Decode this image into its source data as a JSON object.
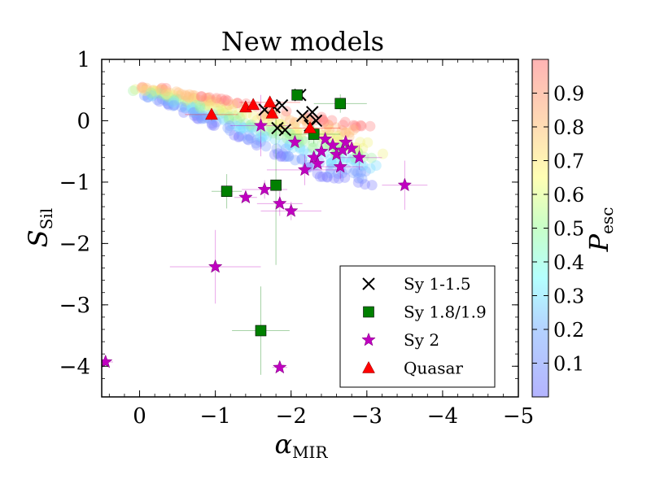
{
  "chart_data": {
    "type": "scatter",
    "title": "New models",
    "xlabel": {
      "main": "α",
      "sub": "MIR"
    },
    "ylabel": {
      "main": "S",
      "sub": "Sil"
    },
    "xlim": [
      0.5,
      -5
    ],
    "ylim": [
      -4.5,
      1
    ],
    "x_ticks": [
      0,
      -1,
      -2,
      -3,
      -4,
      -5
    ],
    "x_tick_labels": [
      "0",
      "−1",
      "−2",
      "−3",
      "−4",
      "−5"
    ],
    "y_ticks": [
      1,
      0,
      -1,
      -2,
      -3,
      -4
    ],
    "y_tick_labels": [
      "1",
      "0",
      "−1",
      "−2",
      "−3",
      "−4"
    ],
    "colorbar": {
      "label": "P",
      "label_sub": "esc",
      "range": [
        0,
        1
      ],
      "ticks": [
        0.1,
        0.2,
        0.3,
        0.4,
        0.5,
        0.6,
        0.7,
        0.8,
        0.9
      ],
      "tick_labels": [
        "0.1",
        "0.2",
        "0.3",
        "0.4",
        "0.5",
        "0.6",
        "0.7",
        "0.8",
        "0.9"
      ]
    },
    "legend_position": "lower-right",
    "series": [
      {
        "name": "Sy 1-1.5",
        "marker": "x",
        "color": "#000000",
        "points": [
          [
            -1.65,
            0.18
          ],
          [
            -1.78,
            0.22
          ],
          [
            -1.88,
            0.25
          ],
          [
            -2.12,
            0.42
          ],
          [
            -2.15,
            0.08
          ],
          [
            -2.28,
            0.14
          ],
          [
            -2.33,
            0.0
          ],
          [
            -1.82,
            -0.12
          ],
          [
            -1.92,
            -0.15
          ],
          [
            -2.25,
            -0.08
          ]
        ]
      },
      {
        "name": "Sy 1.8/1.9",
        "marker": "square",
        "color": "#008000",
        "points": [
          [
            -2.08,
            0.42
          ],
          [
            -2.65,
            0.28
          ],
          [
            -2.3,
            -0.22
          ],
          [
            -1.15,
            -1.15
          ],
          [
            -1.8,
            -1.05
          ],
          [
            -1.6,
            -3.42
          ]
        ]
      },
      {
        "name": "Sy 2",
        "marker": "star",
        "color": "#c000c0",
        "points": [
          [
            -1.6,
            -0.08
          ],
          [
            -2.05,
            -0.35
          ],
          [
            -2.18,
            -0.8
          ],
          [
            -2.3,
            -0.6
          ],
          [
            -2.4,
            -0.5
          ],
          [
            -2.45,
            -0.3
          ],
          [
            -2.55,
            -0.4
          ],
          [
            -2.6,
            -0.55
          ],
          [
            -2.68,
            -0.48
          ],
          [
            -2.72,
            -0.35
          ],
          [
            -2.8,
            -0.45
          ],
          [
            -2.9,
            -0.6
          ],
          [
            -2.65,
            -0.75
          ],
          [
            -2.35,
            -0.7
          ],
          [
            -1.4,
            -1.25
          ],
          [
            -1.65,
            -1.12
          ],
          [
            -1.85,
            -1.35
          ],
          [
            -2.0,
            -1.47
          ],
          [
            -3.5,
            -1.05
          ],
          [
            -1.0,
            -2.38
          ],
          [
            0.45,
            -3.93
          ],
          [
            -1.85,
            -4.02
          ]
        ]
      },
      {
        "name": "Quasar",
        "marker": "triangle",
        "color": "#ff0000",
        "points": [
          [
            -0.95,
            0.1
          ],
          [
            -1.4,
            0.22
          ],
          [
            -1.5,
            0.26
          ],
          [
            -1.72,
            0.3
          ],
          [
            -1.75,
            0.12
          ],
          [
            -2.25,
            -0.12
          ]
        ]
      }
    ],
    "error_bars": [
      {
        "x": -1.15,
        "y": -1.15,
        "xerr": 0.2,
        "yerr": 0.28,
        "color": "#008000"
      },
      {
        "x": -1.6,
        "y": -3.42,
        "xerr": 0.38,
        "yerr": 0.72,
        "color": "#008000"
      },
      {
        "x": -1.8,
        "y": -1.05,
        "xerr": 0.0,
        "yerr": 1.3,
        "color": "#008000"
      },
      {
        "x": -1.0,
        "y": -2.38,
        "xerr": 0.6,
        "yerr": 0.6,
        "color": "#c000c0"
      },
      {
        "x": -1.4,
        "y": -1.25,
        "xerr": 0.15,
        "yerr": 0.08,
        "color": "#c000c0"
      },
      {
        "x": -1.65,
        "y": -1.12,
        "xerr": 0.3,
        "yerr": 0.15,
        "color": "#c000c0"
      },
      {
        "x": -1.85,
        "y": -1.35,
        "xerr": 0.3,
        "yerr": 0.2,
        "color": "#c000c0"
      },
      {
        "x": -2.0,
        "y": -1.47,
        "xerr": 0.4,
        "yerr": 0.15,
        "color": "#c000c0"
      },
      {
        "x": -3.5,
        "y": -1.05,
        "xerr": 0.3,
        "yerr": 0.4,
        "color": "#c000c0"
      },
      {
        "x": 0.45,
        "y": -3.93,
        "xerr": 0.1,
        "yerr": 0.05,
        "color": "#c000c0"
      },
      {
        "x": -1.85,
        "y": -4.02,
        "xerr": 0.1,
        "yerr": 0.05,
        "color": "#c000c0"
      },
      {
        "x": -2.18,
        "y": -0.8,
        "xerr": 0.5,
        "yerr": 0.25,
        "color": "#c000c0"
      },
      {
        "x": -2.9,
        "y": -0.6,
        "xerr": 0.3,
        "yerr": 0.2,
        "color": "#c000c0"
      },
      {
        "x": -2.65,
        "y": -0.75,
        "xerr": 0.3,
        "yerr": 0.2,
        "color": "#c000c0"
      },
      {
        "x": -1.6,
        "y": -0.08,
        "xerr": 0.4,
        "yerr": 0.5,
        "color": "#c000c0"
      },
      {
        "x": -2.3,
        "y": -0.22,
        "xerr": 0.35,
        "yerr": 0.15,
        "color": "#008000"
      },
      {
        "x": -2.65,
        "y": 0.28,
        "xerr": 0.35,
        "yerr": 0.15,
        "color": "#008000"
      },
      {
        "x": -0.95,
        "y": 0.1,
        "xerr": 0.35,
        "yerr": 0.1,
        "color": "#ff0000"
      },
      {
        "x": -1.72,
        "y": 0.3,
        "xerr": 0.4,
        "yerr": 0.1,
        "color": "#ff0000"
      },
      {
        "x": -2.25,
        "y": -0.12,
        "xerr": 0.4,
        "yerr": 0.1,
        "color": "#ff0000"
      }
    ]
  }
}
